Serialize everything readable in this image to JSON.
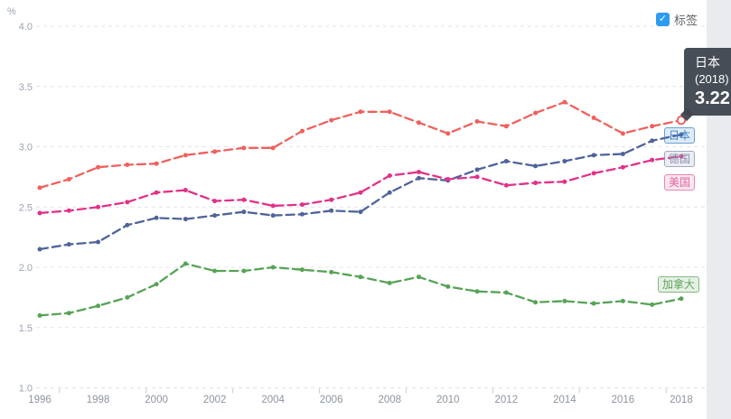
{
  "legend_checkbox": {
    "label": "标签",
    "checked": true,
    "check_glyph": "✓",
    "accent_color": "#2d9cf0"
  },
  "tooltip": {
    "series": "日本",
    "year_label": "(2018)",
    "value": "3.22"
  },
  "end_labels": [
    {
      "id": "japan",
      "text": "日本",
      "color": "#3d85c8",
      "state": "highlighted"
    },
    {
      "id": "germany",
      "text": "德国",
      "color": "#8a90b0",
      "state": "normal"
    },
    {
      "id": "usa",
      "text": "美国",
      "color": "#e0669f",
      "state": "normal"
    },
    {
      "id": "canada",
      "text": "加拿大",
      "color": "#5fa55c",
      "state": "normal"
    }
  ],
  "chart_data": {
    "type": "line",
    "title": "",
    "unit": "%",
    "line_style": "dashed with point markers",
    "grid": "horizontal dashed gridlines only",
    "legend_position": "end-of-line labels, right side",
    "x": [
      1996,
      1997,
      1998,
      1999,
      2000,
      2001,
      2002,
      2003,
      2004,
      2005,
      2006,
      2007,
      2008,
      2009,
      2010,
      2011,
      2012,
      2013,
      2014,
      2015,
      2016,
      2017,
      2018
    ],
    "x_tick_labels": [
      "1996",
      "1998",
      "2000",
      "2002",
      "2004",
      "2006",
      "2008",
      "2010",
      "2012",
      "2014",
      "2016",
      "2018"
    ],
    "ylim": [
      1.0,
      4.0
    ],
    "y_ticks": [
      4.0,
      3.5,
      3.0,
      2.5,
      2.0,
      1.5,
      1.0
    ],
    "series": [
      {
        "id": "canada",
        "name": "加拿大",
        "color": "#57a356",
        "values": [
          1.6,
          1.62,
          1.68,
          1.75,
          1.86,
          2.03,
          1.97,
          1.97,
          2.0,
          1.98,
          1.96,
          1.92,
          1.87,
          1.92,
          1.84,
          1.8,
          1.79,
          1.71,
          1.72,
          1.7,
          1.72,
          1.69,
          1.74
        ]
      },
      {
        "id": "germany",
        "name": "德国",
        "color": "#4f639b",
        "values": [
          2.15,
          2.19,
          2.21,
          2.35,
          2.41,
          2.4,
          2.43,
          2.46,
          2.43,
          2.44,
          2.47,
          2.46,
          2.62,
          2.74,
          2.72,
          2.81,
          2.88,
          2.84,
          2.88,
          2.93,
          2.94,
          3.05,
          3.1
        ]
      },
      {
        "id": "usa",
        "name": "美国",
        "color": "#e23189",
        "values": [
          2.45,
          2.47,
          2.5,
          2.54,
          2.62,
          2.64,
          2.55,
          2.56,
          2.51,
          2.52,
          2.56,
          2.62,
          2.76,
          2.79,
          2.73,
          2.75,
          2.68,
          2.7,
          2.71,
          2.78,
          2.83,
          2.89,
          2.92
        ]
      },
      {
        "id": "japan",
        "name": "日本",
        "color": "#f0605d",
        "values": [
          2.66,
          2.73,
          2.83,
          2.85,
          2.86,
          2.93,
          2.96,
          2.99,
          2.99,
          3.13,
          3.22,
          3.29,
          3.29,
          3.2,
          3.11,
          3.21,
          3.17,
          3.28,
          3.37,
          3.24,
          3.11,
          3.17,
          3.22
        ]
      }
    ],
    "highlight": {
      "series": "日本",
      "series_id": "japan",
      "year": 2018,
      "value": 3.22
    }
  }
}
